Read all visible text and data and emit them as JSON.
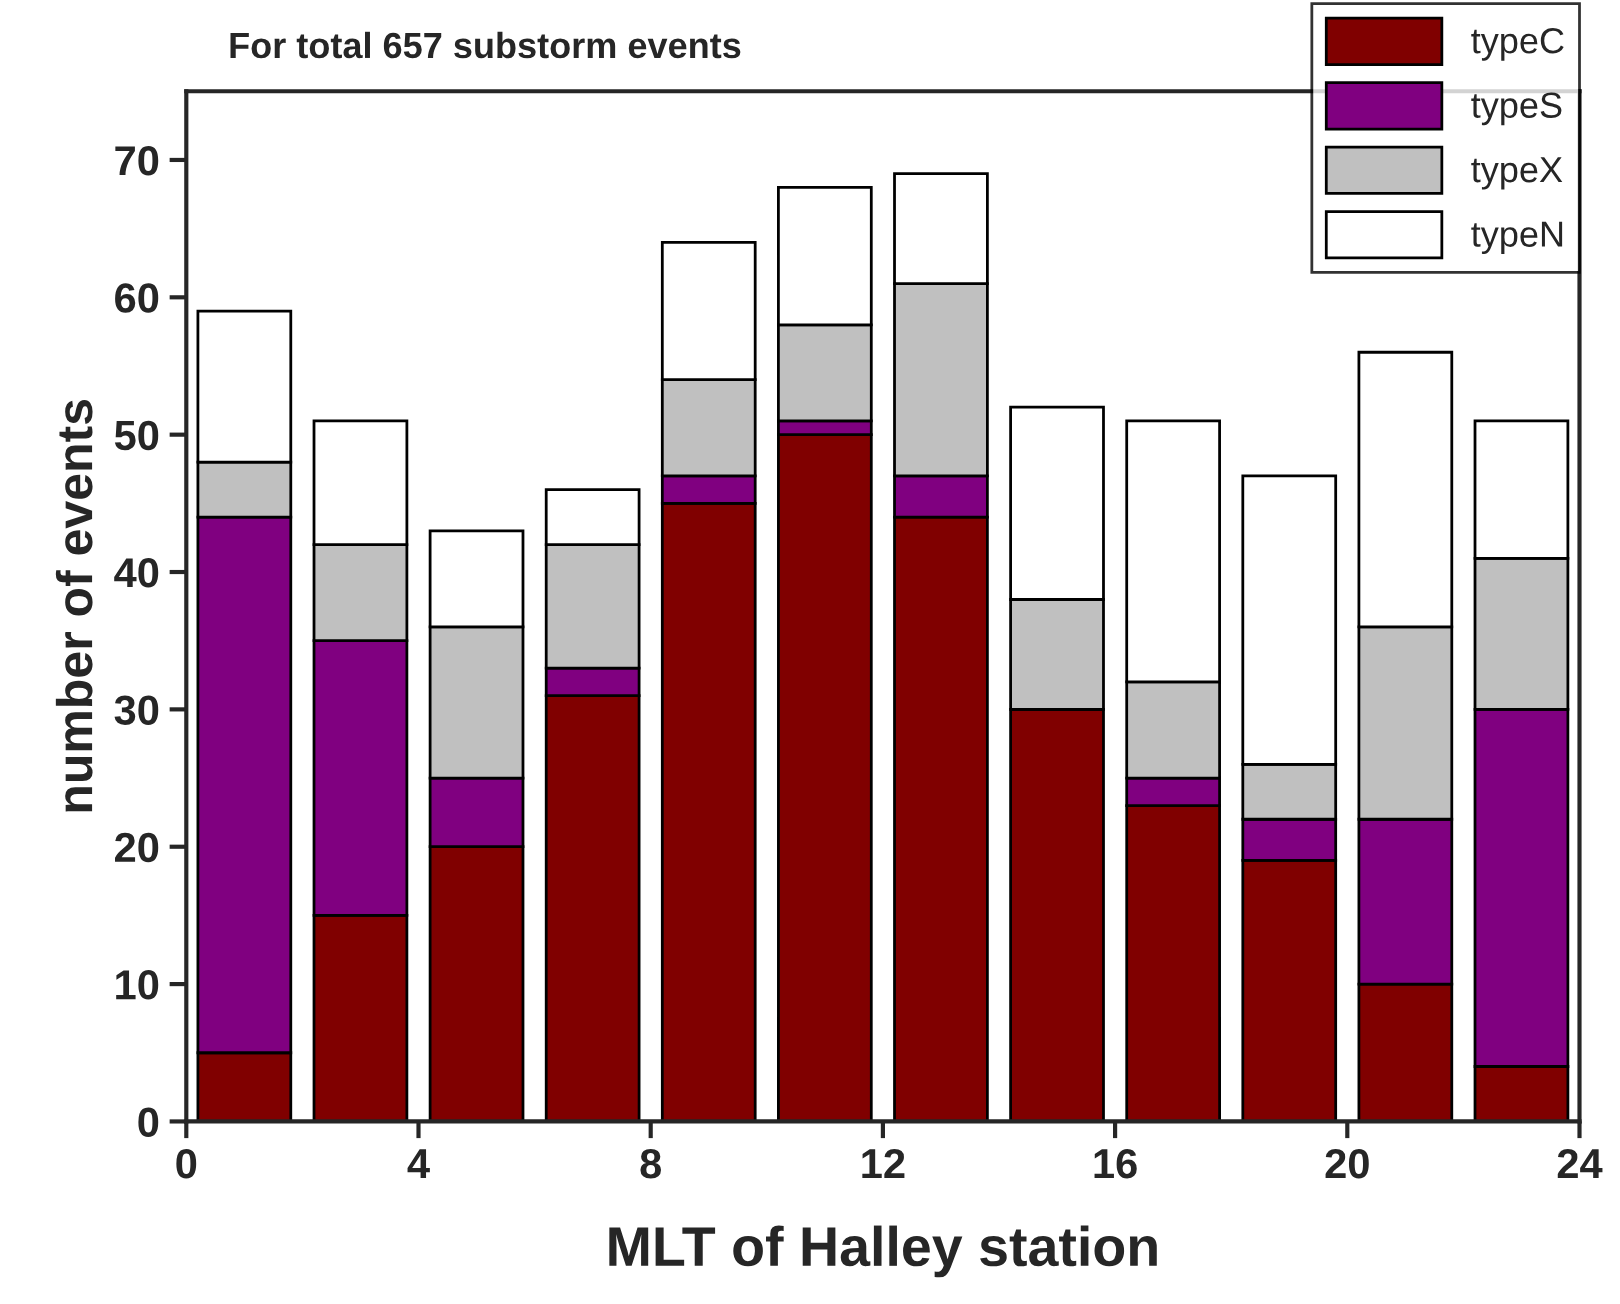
{
  "chart_data": {
    "type": "bar",
    "stacked": true,
    "title": "For total 657 substorm events",
    "xlabel": "MLT of Halley station",
    "ylabel": "number of events",
    "x": [
      1,
      3,
      5,
      7,
      9,
      11,
      13,
      15,
      17,
      19,
      21,
      23
    ],
    "series": [
      {
        "name": "typeC",
        "color": "#800000",
        "values": [
          5,
          15,
          20,
          31,
          45,
          50,
          44,
          30,
          23,
          19,
          10,
          4
        ]
      },
      {
        "name": "typeS",
        "color": "#800080",
        "values": [
          39,
          20,
          5,
          2,
          2,
          1,
          3,
          0,
          2,
          3,
          12,
          26
        ]
      },
      {
        "name": "typeX",
        "color": "#c0c0c0",
        "values": [
          4,
          7,
          11,
          9,
          7,
          7,
          14,
          8,
          7,
          4,
          14,
          11
        ]
      },
      {
        "name": "typeN",
        "color": "#ffffff",
        "values": [
          11,
          9,
          7,
          4,
          10,
          10,
          8,
          14,
          19,
          21,
          20,
          10
        ]
      }
    ],
    "xlim": [
      0,
      24
    ],
    "xticks": [
      0,
      4,
      8,
      12,
      16,
      20,
      24
    ],
    "ylim": [
      0,
      75
    ],
    "yticks": [
      0,
      10,
      20,
      30,
      40,
      50,
      60,
      70
    ],
    "grid": false,
    "legend": "top right"
  }
}
